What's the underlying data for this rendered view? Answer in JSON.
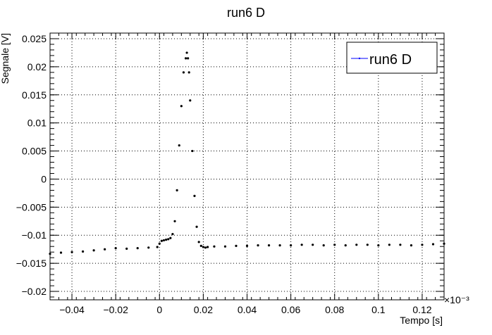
{
  "chart_data": {
    "type": "scatter",
    "title": "run6 D",
    "xlabel": "Tempo [s]",
    "ylabel": "Segnale [V]",
    "x_multiplier_label": "×10⁻³",
    "xlim": [
      -0.05,
      0.13
    ],
    "ylim": [
      -0.0215,
      0.026
    ],
    "xticks": [
      -0.04,
      -0.02,
      0,
      0.02,
      0.04,
      0.06,
      0.08,
      0.1,
      0.12
    ],
    "xtick_labels": [
      "−0.04",
      "−0.02",
      "0",
      "0.02",
      "0.04",
      "0.06",
      "0.08",
      "0.1",
      "0.12"
    ],
    "yticks": [
      -0.02,
      -0.015,
      -0.01,
      -0.005,
      0,
      0.005,
      0.01,
      0.015,
      0.02,
      0.025
    ],
    "ytick_labels": [
      "−0.02",
      "−0.015",
      "−0.01",
      "−0.005",
      "0",
      "0.005",
      "0.01",
      "0.015",
      "0.02",
      "0.025"
    ],
    "grid": true,
    "legend_position": "top-right",
    "series": [
      {
        "name": "run6 D",
        "color": "#000000",
        "legend_line_color": "#0000ff",
        "x": [
          -0.05,
          -0.045,
          -0.04,
          -0.035,
          -0.03,
          -0.025,
          -0.02,
          -0.015,
          -0.01,
          -0.005,
          -0.001,
          0.0,
          0.001,
          0.002,
          0.003,
          0.004,
          0.005,
          0.006,
          0.007,
          0.008,
          0.009,
          0.01,
          0.011,
          0.012,
          0.0125,
          0.013,
          0.0135,
          0.014,
          0.015,
          0.016,
          0.017,
          0.018,
          0.019,
          0.02,
          0.021,
          0.022,
          0.025,
          0.03,
          0.035,
          0.04,
          0.045,
          0.05,
          0.055,
          0.06,
          0.065,
          0.07,
          0.075,
          0.08,
          0.085,
          0.09,
          0.095,
          0.1,
          0.105,
          0.11,
          0.115,
          0.12,
          0.125,
          0.13
        ],
        "y": [
          -0.0133,
          -0.0131,
          -0.013,
          -0.0129,
          -0.0127,
          -0.0125,
          -0.0123,
          -0.0124,
          -0.0123,
          -0.0122,
          -0.0121,
          -0.0115,
          -0.011,
          -0.0109,
          -0.0108,
          -0.0107,
          -0.0105,
          -0.0098,
          -0.0075,
          -0.002,
          0.006,
          0.013,
          0.019,
          0.0215,
          0.0225,
          0.0215,
          0.019,
          0.014,
          0.005,
          -0.003,
          -0.0085,
          -0.0112,
          -0.0119,
          -0.0121,
          -0.0122,
          -0.0121,
          -0.012,
          -0.012,
          -0.0119,
          -0.0119,
          -0.0118,
          -0.0118,
          -0.0118,
          -0.0118,
          -0.0117,
          -0.0117,
          -0.0118,
          -0.0117,
          -0.0118,
          -0.0117,
          -0.0117,
          -0.0118,
          -0.0117,
          -0.0117,
          -0.0118,
          -0.0117,
          -0.0116,
          -0.0115
        ]
      }
    ]
  }
}
